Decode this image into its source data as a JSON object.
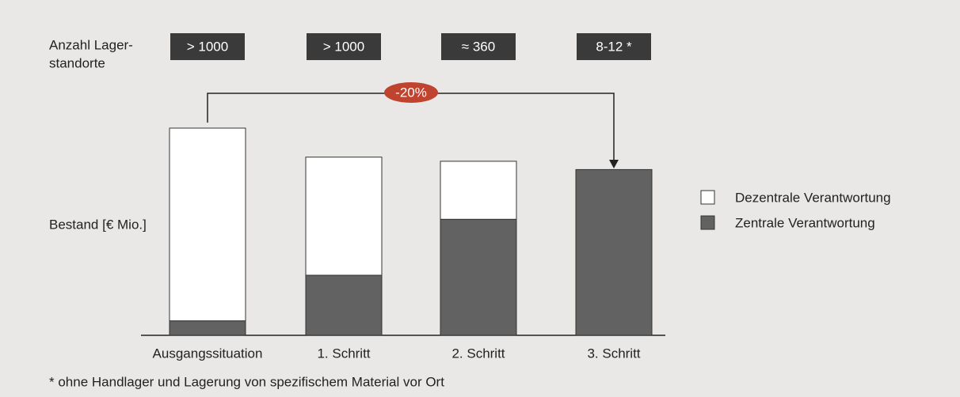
{
  "chart_data": {
    "type": "stacked_bar",
    "row_label": [
      "Anzahl Lager-",
      "standorte"
    ],
    "site_counts": [
      "> 1000",
      "> 1000",
      "≈ 360",
      "8-12 *"
    ],
    "change_label": "-20%",
    "ylabel": "Bestand [€ Mio.]",
    "footnote": "* ohne Handlager und Lagerung von spezifischem Material vor Ort",
    "categories": [
      "Ausgangssituation",
      "1. Schritt",
      "2. Schritt",
      "3. Schritt"
    ],
    "series": [
      {
        "name": "Dezentrale Verantwortung",
        "color": "#ffffff",
        "values": [
          93,
          57,
          28,
          0
        ]
      },
      {
        "name": "Zentrale Verantwortung",
        "color": "#626262",
        "values": [
          7,
          29,
          56,
          80
        ]
      }
    ],
    "ylim": [
      0,
      100
    ]
  }
}
